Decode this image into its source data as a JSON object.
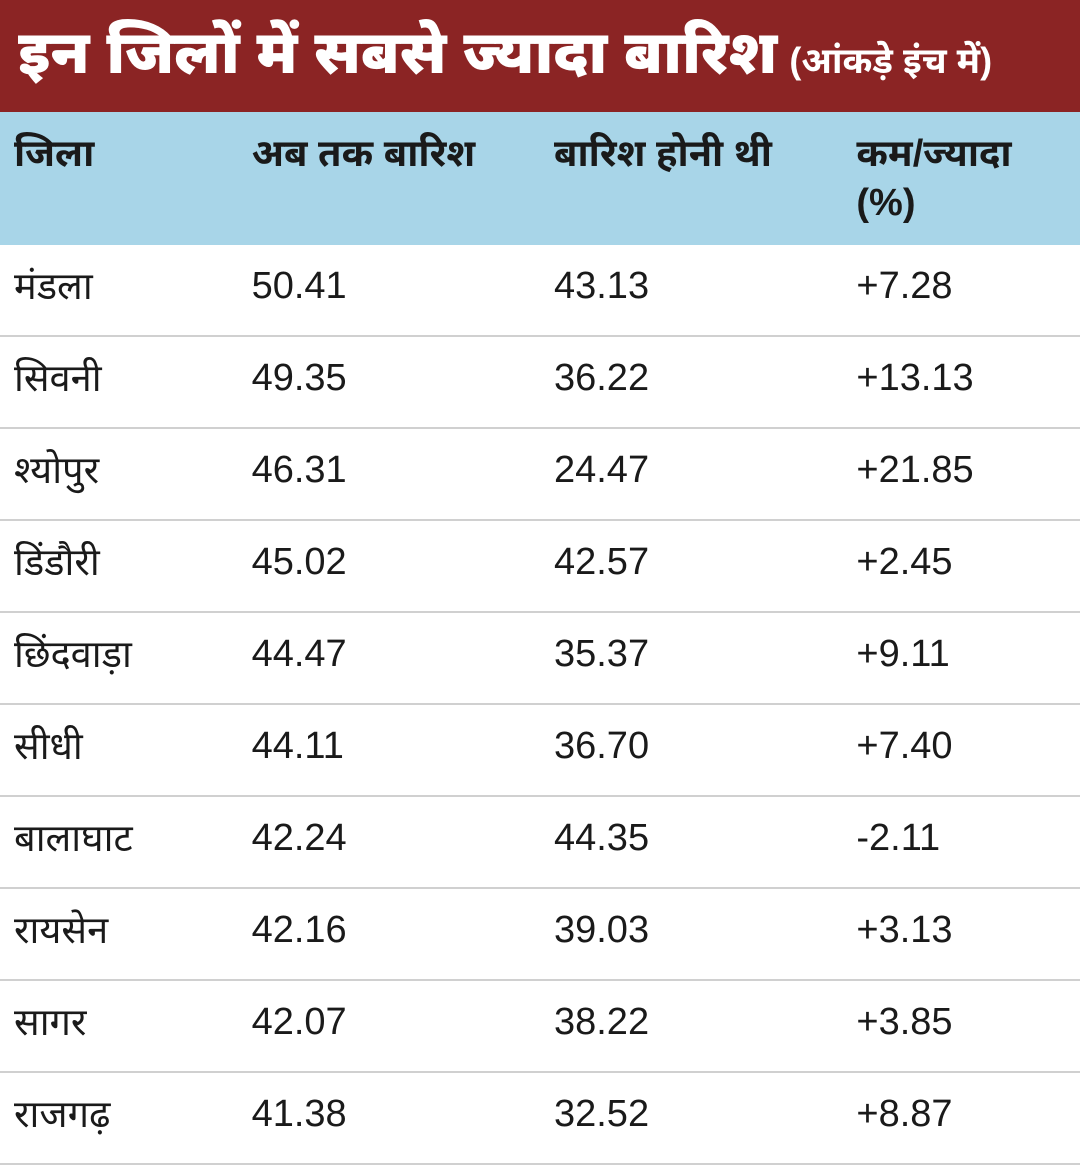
{
  "header": {
    "title": "इन जिलों में सबसे ज्यादा बारिश",
    "subtitle": "(आंकड़े इंच में)",
    "bg_color": "#8b2424",
    "text_color": "#ffffff",
    "title_fontsize": 60,
    "subtitle_fontsize": 36
  },
  "table": {
    "type": "table",
    "header_bg_color": "#a8d5e8",
    "row_border_color": "#d0d0d0",
    "text_color": "#1a1a1a",
    "header_fontsize": 38,
    "cell_fontsize": 38,
    "columns": [
      "जिला",
      "अब तक बारिश",
      "बारिश होनी थी",
      "कम/ज्यादा (%)"
    ],
    "column_widths": [
      "22%",
      "28%",
      "28%",
      "22%"
    ],
    "rows": [
      [
        "मंडला",
        "50.41",
        "43.13",
        "+7.28"
      ],
      [
        "सिवनी",
        "49.35",
        "36.22",
        "+13.13"
      ],
      [
        "श्योपुर",
        "46.31",
        "24.47",
        "+21.85"
      ],
      [
        "डिंडौरी",
        "45.02",
        "42.57",
        "+2.45"
      ],
      [
        "छिंदवाड़ा",
        "44.47",
        "35.37",
        "+9.11"
      ],
      [
        "सीधी",
        "44.11",
        "36.70",
        "+7.40"
      ],
      [
        "बालाघाट",
        "42.24",
        "44.35",
        "-2.11"
      ],
      [
        "रायसेन",
        "42.16",
        "39.03",
        "+3.13"
      ],
      [
        "सागर",
        "42.07",
        "38.22",
        "+3.85"
      ],
      [
        "राजगढ़",
        "41.38",
        "32.52",
        "+8.87"
      ]
    ]
  }
}
